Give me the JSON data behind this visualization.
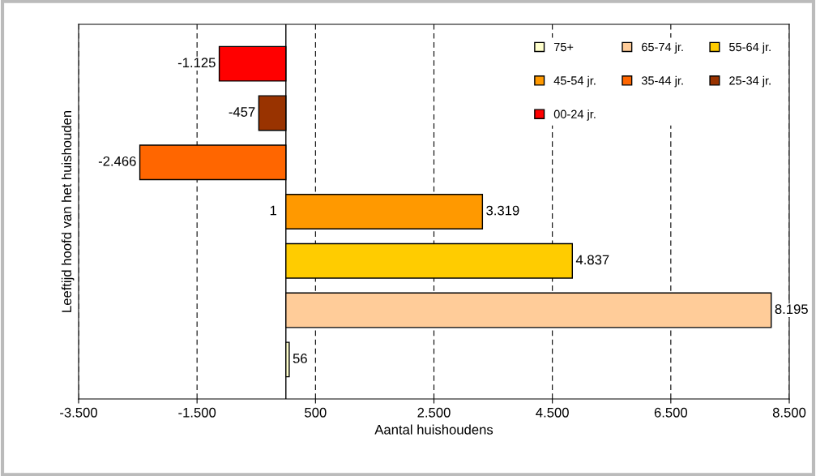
{
  "chart_data": {
    "type": "bar",
    "orientation": "horizontal",
    "xlabel": "Aantal huishoudens",
    "ylabel": "Leeftijd hoofd van het huishouden",
    "categories": [
      null,
      null,
      null,
      null,
      null,
      null,
      null
    ],
    "series": [
      {
        "name": "00-24 jr.",
        "color": "#ff0000",
        "values": [
          -1125,
          null,
          null,
          null,
          null,
          null,
          null
        ],
        "value_labels": [
          "-1.125",
          null,
          null,
          null,
          null,
          null,
          null
        ]
      },
      {
        "name": "25-34 jr.",
        "color": "#993300",
        "values": [
          null,
          -457,
          null,
          null,
          null,
          null,
          null
        ],
        "value_labels": [
          null,
          "-457",
          null,
          null,
          null,
          null,
          null
        ]
      },
      {
        "name": "35-44 jr.",
        "color": "#ff6600",
        "values": [
          null,
          null,
          -2466,
          null,
          null,
          null,
          null
        ],
        "value_labels": [
          null,
          null,
          "-2.466",
          null,
          null,
          null,
          null
        ]
      },
      {
        "name": "45-54 jr.",
        "color": "#ff9900",
        "values": [
          null,
          null,
          null,
          3319,
          null,
          null,
          null
        ],
        "value_labels": [
          null,
          null,
          null,
          "3.319",
          null,
          null,
          null
        ]
      },
      {
        "name": "55-64 jr.",
        "color": "#ffcc00",
        "values": [
          null,
          null,
          null,
          null,
          4837,
          null,
          null
        ],
        "value_labels": [
          null,
          null,
          null,
          null,
          "4.837",
          null,
          null
        ]
      },
      {
        "name": "65-74 jr.",
        "color": "#ffcc99",
        "values": [
          null,
          null,
          null,
          null,
          null,
          8195,
          null
        ],
        "value_labels": [
          null,
          null,
          null,
          null,
          null,
          "8.195",
          null
        ]
      },
      {
        "name": "75+",
        "color": "#ffffcc",
        "values": [
          null,
          null,
          null,
          null,
          null,
          null,
          56
        ],
        "value_labels": [
          null,
          null,
          null,
          null,
          null,
          null,
          "56"
        ]
      }
    ],
    "annotations": [
      "1"
    ],
    "xlim": [
      -3500,
      8500
    ],
    "xticks": [
      {
        "value": -3500,
        "label": "-3.500"
      },
      {
        "value": -1500,
        "label": "-1.500"
      },
      500,
      {
        "value": 2500,
        "label": "2.500"
      },
      {
        "value": 4500,
        "label": "4.500"
      },
      {
        "value": 6500,
        "label": "6.500"
      },
      {
        "value": 8500,
        "label": "8.500"
      }
    ],
    "grid": "x",
    "legend": "top right",
    "tick_labels": "x"
  }
}
